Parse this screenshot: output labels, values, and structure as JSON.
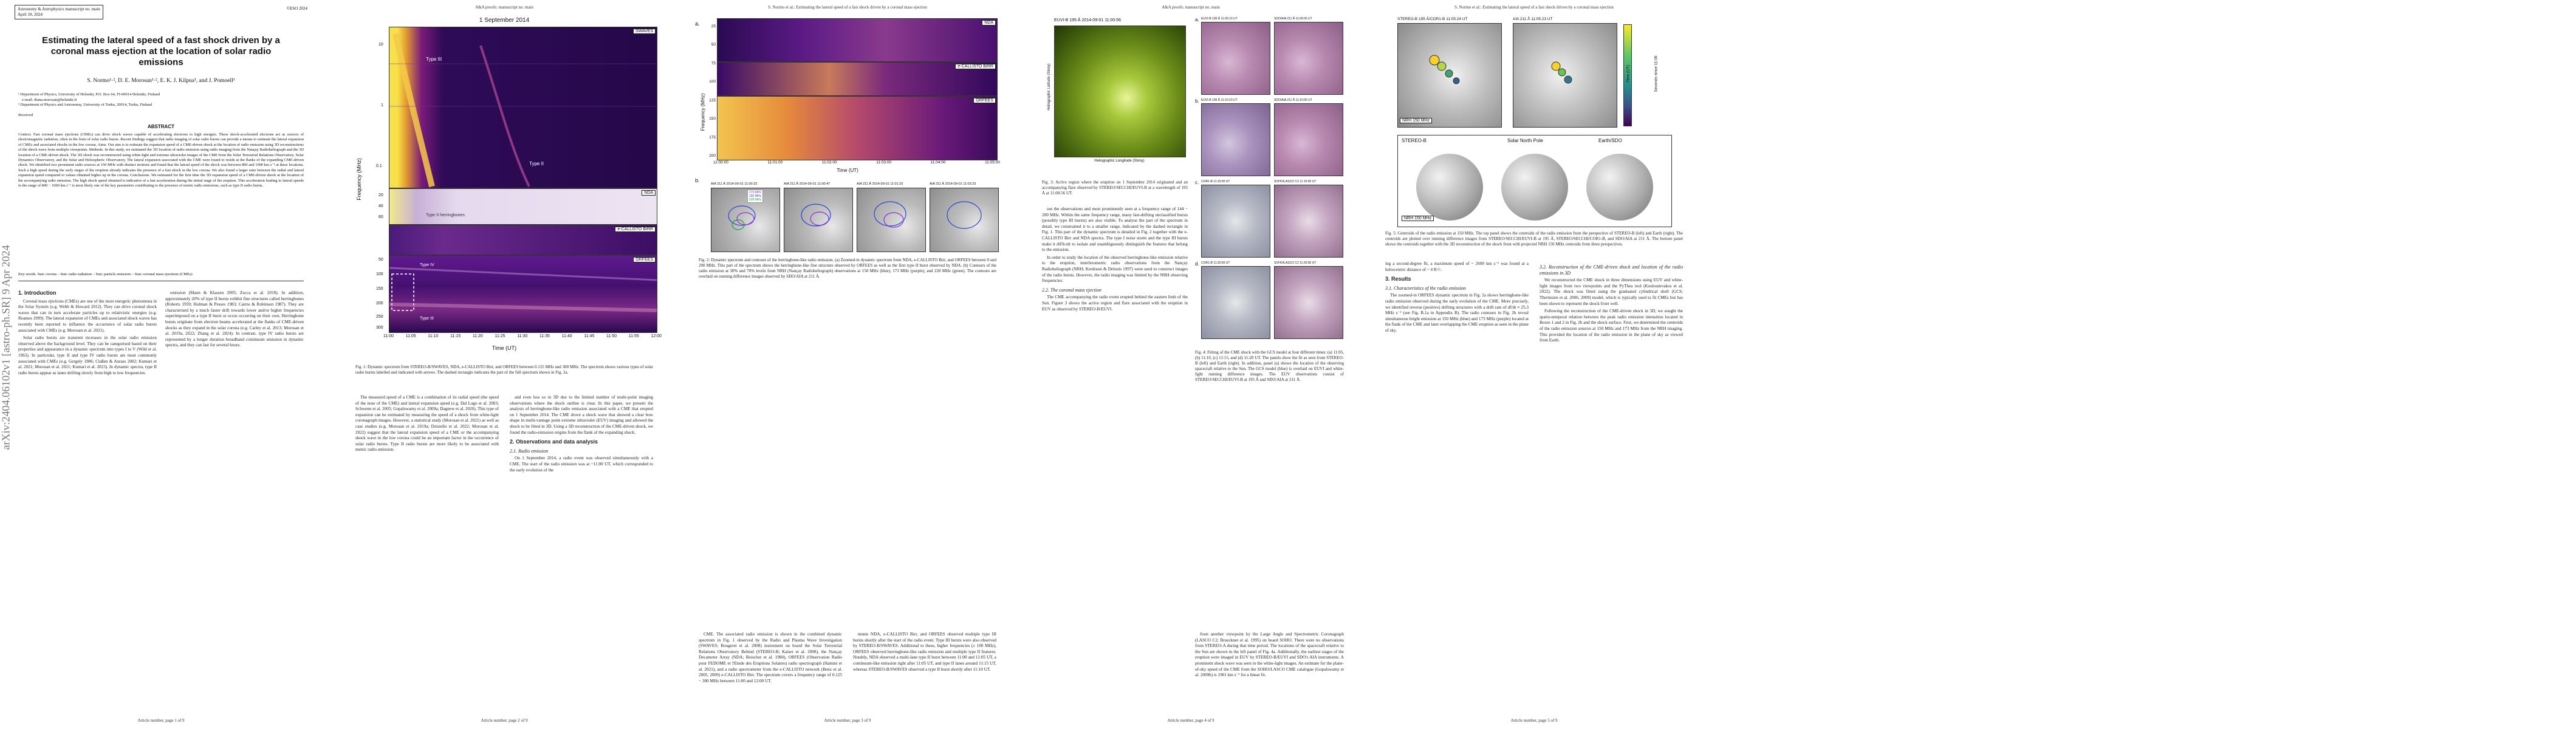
{
  "page1": {
    "journal": "Astronomy & Astrophysics manuscript no. main",
    "date": "April 10, 2024",
    "copyright": "©ESO 2024",
    "title": "Estimating the lateral speed of a fast shock driven by a coronal mass ejection at the location of solar radio emissions",
    "authors": "S. Normo¹·², D. E. Morosan¹·², E. K. J. Kilpua¹, and J. Pomoell¹",
    "affil1": "¹ Department of Physics, University of Helsinki, P.O. Box 64, FI-00014 Helsinki, Finland",
    "affil_email": "e-mail: diana.morosan@helsinki.fi",
    "affil2": "² Department of Physics and Astronomy, University of Turku, 20014, Turku, Finland",
    "received": "Received",
    "abstract_head": "ABSTRACT",
    "abstract": "Context. Fast coronal mass ejections (CMEs) can drive shock waves capable of accelerating electrons to high energies. These shock-accelerated electrons act as sources of electromagnetic radiation, often in the form of solar radio bursts. Recent findings suggest that radio imaging of solar radio bursts can provide a means to estimate the lateral expansion of CMEs and associated shocks in the low corona. Aims. Our aim is to estimate the expansion speed of a CME-driven shock at the location of radio emission using 3D reconstructions of the shock wave from multiple viewpoints. Methods. In this study, we estimated the 3D location of radio emission using radio imaging from the Nançay Radioheliograph and the 3D location of a CME-driven shock. The 3D shock was reconstructed using white-light and extreme ultraviolet images of the CME from the Solar Terrestrial Relations Observatory, Solar Dynamics Observatory, and the Solar and Heliospheric Observatory. The lateral expansion associated with the CME were found to reside at the flanks of the expanding CME-driven shock. We identified two prominent radio sources at 150 MHz with distinct motions and found that the lateral speed of the shock was between 800 and 1000 km s⁻¹ at these locations. Such a high speed during the early stages of the eruption already indicates the presence of a fast shock in the low corona. We also found a larger ratio between the radial and lateral expansion speed compared to values obtained higher up in the corona. Conclusions. We estimated for the first time the 3D expansion speed of a CME-driven shock at the location of the accompanying radio emission. The high shock speed obtained is indicative of a fast acceleration during the initial stage of the eruption. This acceleration leading to lateral speeds in the range of 800 − 1000 km s⁻¹ is most likely one of the key parameters contributing to the presence of metric radio emissions, such as type II radio bursts.",
    "keywords": "Key words. Sun: corona – Sun: radio radiation – Sun: particle emission – Sun: coronal mass ejections (CMEs)",
    "arxiv": "arXiv:2404.06102v1  [astro-ph.SR]  9 Apr 2024",
    "intro_head": "1. Introduction",
    "intro_a": "Coronal mass ejections (CMEs) are one of the most energetic phenomena in the Solar System (e.g. Webb & Howard 2012). They can drive coronal shock waves that can in turn accelerate particles up to relativistic energies (e.g. Reames 1999). The lateral expansion of CMEs and associated shock waves has recently been reported to influence the occurrence of solar radio bursts associated with CMEs (e.g. Morosan et al. 2021).",
    "intro_b": "Solar radio bursts are transient increases in the solar radio emission observed above the background level. They can be categorised based on their properties and appearance in a dynamic spectrum into types I to V (Wild et al. 1963). In particular, type II and type IV radio bursts are most commonly associated with CMEs (e.g. Gergely 1986; Claßen & Aurass 2002; Kumari et al. 2021; Morosan et al. 2021; Kumari et al. 2023). In dynamic spectra, type II radio bursts appear as lanes drifting slowly from high to low frequencies.",
    "intro_c": "emission (Mann & Klassen 2005; Zucca et al. 2018). In addition, approximately 20% of type II bursts exhibit fine structures called herringbones (Roberts 1959; Holman & Pesses 1983; Cairns & Robinson 1987). They are characterised by a much faster drift towards lower and/or higher frequencies superimposed on a type II burst or occur occurring on their own. Herringbone bursts originate from electron beams accelerated at the flanks of CME-driven shocks as they expand in the solar corona (e.g. Carley et al. 2013; Morosan et al. 2019a, 2022; Zhang et al. 2024). In contrast, type IV radio bursts are represented by a longer duration broadband continuum emission in dynamic spectra, and they can last for several hours.",
    "footer": "Article number, page 1 of 9"
  },
  "page2": {
    "header": "A&A proofs: manuscript no. main",
    "plot_title": "1 September 2014",
    "tags": [
      "SWAVES",
      "NDA",
      "e-CALLISTO BIRR",
      "ORFEES"
    ],
    "ylabel": "Frequency (MHz)",
    "xlabel": "Time (UT)",
    "xticks": [
      "11:00",
      "11:05",
      "11:10",
      "11:15",
      "11:20",
      "11:25",
      "11:30",
      "11:35",
      "11:40",
      "11:45",
      "11:50",
      "11:55",
      "12:00"
    ],
    "yticks_top": [
      "0.1",
      "1",
      "10"
    ],
    "yticks_mid": [
      "20",
      "40",
      "60"
    ],
    "yticks_bot": [
      "50",
      "100",
      "150",
      "200",
      "250",
      "300"
    ],
    "ann": [
      "Type III",
      "Type III",
      "Type II herringbones",
      "Type II",
      "Type IV"
    ],
    "caption": "Fig. 1: Dynamic spectrum from STEREO-B/SWAVES, NDA, e-CALLISTO Birr, and ORFEES between 0.125 MHz and 300 MHz. The spectrum shows various types of solar radio bursts labelled and indicated with arrows. The dashed rectangle indicates the part of the full spectrum shown in Fig. 2a.",
    "colA": "The measured speed of a CME is a combination of its radial speed (the speed of the nose of the CME) and lateral expansion speed (e.g. Dal Lago et al. 2003; Schwenn et al. 2005; Gopalswamy et al. 2009a; Dagnew et al. 2020). This type of expansion can be estimated by measuring the speed of a shock from white-light coronagraph images. However, a statistical study (Morosan et al. 2021) as well as case studies (e.g. Morosan et al. 2019a; Dzisiello et al. 2022; Morosan et al. 2022) suggest that the lateral expansion speed of a CME or the accompanying shock wave in the low corona could be an important factor in the occurrence of solar radio bursts. Type II radio bursts are more likely to be associated with metric radio emission.",
    "colB": "and even less so in 3D due to the limited number of multi-point imaging observations where the shock outline is clear. In this paper, we present the analysis of herringbone-like radio emission associated with a CME that erupted on 1 September 2014. The CME drove a shock wave that showed a clear bow shape in multi-vantage point extreme ultraviolet (EUV) imaging and allowed the shock to be fitted in 3D. Using a 3D reconstruction of the CME-driven shock, we found the radio-emission origins from the flank of the expanding shock.",
    "sec2": "2. Observations and data analysis",
    "sec21": "2.1. Radio emission",
    "colB2": "On 1 September 2014, a radio event was observed simultaneously with a CME. The start of the radio emission was at ~11:00 UT, which corresponded to the early evolution of the",
    "footer": "Article number, page 2 of 9"
  },
  "page3": {
    "header": "S. Normo et al.: Estimating the lateral speed of a fast shock driven by a coronal mass ejection",
    "tags": [
      "NDA",
      "e-CALLISTO BIRR",
      "ORFEES"
    ],
    "ylabel": "Frequency (MHz)",
    "xlabel": "Time (UT)",
    "xticks": [
      "11:00:00",
      "11:01:00",
      "11:02:00",
      "11:03:00",
      "11:04:00",
      "11:05:00"
    ],
    "yticks": [
      "25",
      "50",
      "75",
      "100",
      "125",
      "150",
      "175",
      "200"
    ],
    "panel_a": "a.",
    "panel_b": "b.",
    "small_titles": [
      "AIA 211 Å 2014-09-01 11:00:23",
      "AIA 211 Å 2014-09-01 11:00:47",
      "AIA 211 Å 2014-09-01 11:01:23",
      "AIA 211 Å 2014-09-01 11:03:23"
    ],
    "legend": [
      "173 MHz",
      "150 MHz",
      "228 MHz"
    ],
    "caption": "Fig. 2: Dynamic spectrum and contours of the herringbone-like radio emission. (a) Zoomed-in dynamic spectrum from NDA, e-CALLISTO Birr, and ORFEES between 0 and 200 MHz. This part of the spectrum shows the herringbone-like fine structure observed by ORFEES as well as the first type II burst observed by NDA. (b) Contours of the radio emission at 30% and 70% levels from NRH (Nançay Radioheliograph) observations at 150 MHz (blue), 173 MHz (purple), and 228 MHz (green). The contours are overlaid on running difference images observed by SDO/AIA at 211 Å.",
    "colA": "CME. The associated radio emission is shown in the combined dynamic spectrum in Fig. 1 observed by the Radio and Plasma Wave Investigation (SWAVES; Bougeret et al. 2008) instrument on board the Solar Terrestrial Relations Observatory Behind (STEREO-B; Kaiser et al. 2008), the Nançay Decameter Array (NDA; Boischot et al. 1980), ORFEES (Observation Radio pour FEDOME et l'Etude des Eruptions Solaires) radio spectrograph (Hamini et al. 2021), and a radio spectrometer from the e-CALLISTO network (Benz et al. 2005, 2009) e-CALLISTO Birr. The spectrum covers a frequency range of 0.125 − 300 MHz between 11:00 and 12:00 UT.",
    "colB": "ments NDA, e-CALLISTO Birr, and ORFEES observed multiple type III bursts shortly after the start of the radio event. Type III bursts were also observed by STEREO-B/SWAVES. Additional to these, higher frequencies (≥ 100 MHz), ORFEES observed herringbone-like radio emission and multiple type II features. Notably, NDA observed a multi-lane type II burst between 11:00 and 11:05 UT, a continuum-like emission right after 11:05 UT, and type II lanes around 11:15 UT, whereas STEREO-B/SWAVES observed a type II burst shortly after 11:10 UT.",
    "footer": "Article number, page 3 of 9"
  },
  "page4": {
    "header": "A&A proofs: manuscript no. main",
    "euvi_title": "EUVI-B 195 Å 2014-09-01 11:00:56",
    "euvi_xlabel": "Heliographic Longitude (Stony)",
    "euvi_ylabel": "Heliographic Latitude (Stony)",
    "caption3": "Fig. 3: Active region where the eruption on 1 September 2014 originated and an accompanying flare observed by STEREO/SECCHI/EUVI-B at a wavelength of 195 Å at 11:00:56 UT.",
    "caption4": "Fig. 4: Fitting of the CME shock with the GCS model at four different times: (a) 11:05, (b) 11:10, (c) 11:15, and (d) 11:20 UT. The panels show the fit as seen from STEREO-B (left) and Earth (right). In addition, panel (a) shows the location of the observing spacecraft relative to the Sun. The GCS model (blue) is overlaid on EUVI and white-light running difference images. The EUV observations consist of STEREO/SECCHI/EUVI-B at 195 Å and SDO/AIA at 211 Å.",
    "small_titles": [
      "EUVI-B 195 Å 11:05:10 UT",
      "SDO/AIA 211 Å 11:05:00 UT",
      "EUVI-B 195 Å 11:10:10 UT",
      "SDO/AIA 211 Å 11:10:00 UT",
      "COR1-B 11:15:00 UT",
      "SOHO/LASCO C2 11:15:00 UT",
      "COR1-B 11:20:00 UT",
      "SOHO/LASCO C2 11:20:00 UT"
    ],
    "panel_labels": [
      "a.",
      "b.",
      "c.",
      "d."
    ],
    "colA": "out the observations and most prominently seen at a frequency range of 144 − 200 MHz. Within the same frequency range, many fast-drifting unclassified bursts (possibly type III bursts) are also visible. To analyse the part of the spectrum in detail, we constrained it to a smaller range, indicated by the dashed rectangle in Fig. 1. This part of the dynamic spectrum is detailed in Fig. 2 together with the e-CALLISTO Birr and NDA spectra. The type I noise storm and the type III bursts make it difficult to isolate and unambiguously distinguish the features that belong to the emission.",
    "colA2": "In order to study the location of the observed herringbone-like emission relative to the eruption, interferometric radio observations from the Nançay Radioheliograph (NRH; Kerdraon & Delouis 1997) were used to construct images of the radio bursts. However, the radio imaging was limited by the NRH observing frequencies.",
    "sec22": "2.2. The coronal mass ejection",
    "colA3": "The CME accompanying the radio event erupted behind the eastern limb of the Sun. Figure 3 shows the active region and flare associated with the eruption in EUV as observed by STEREO-B/EUVI.",
    "colB": "from another viewpoint by the Large Angle and Spectrometric Coronagraph (LASCO C2; Brueckner et al. 1995) on board SOHO. There were no observations from STEREO-A during that time period. The locations of the spacecraft relative to the Sun are shown in the left panel of Fig. 4a. Additionally, the earliest stages of the eruption were imaged in EUV by STEREO-B/EUVI and SDO's AIA instruments. A prominent shock wave was seen in the white-light images. An estimate for the plane-of-sky speed of the CME from the SOHO/LASCO CME catalogue (Gopalswamy et al. 2009b) is 1901 km s⁻¹ for a linear fit.",
    "footer": "Article number, page 4 of 9"
  },
  "page5": {
    "header": "S. Normo et al.: Estimating the lateral speed of a fast shock driven by a coronal mass ejection",
    "top_titles": [
      "STEREO-B 195 Å/COR1-B 11:05:24 UT",
      "AIA 211 Å 11:05:23 UT"
    ],
    "cbar1": "Time (UT)",
    "cbar2": "Seconds since 11:00",
    "nrh_label": "NRH 150 MHz",
    "bottom_titles": [
      "STEREO-B",
      "Solar North Pole",
      "Earth/SDO"
    ],
    "caption": "Fig. 5: Centroids of the radio emission at 150 MHz. The top panel shows the centroids of the radio emission from the perspective of STEREO-B (left) and Earth (right). The centroids are plotted over running difference images from STEREO/SECCHI/EUVI-B at 195 Å, STEREO/SECCHI/COR1-B, and SDO/AIA at 211 Å. The bottom panel shows the centroids together with the 3D reconstruction of the shock front with projected NRH 150 MHz centroids from three perspectives.",
    "colA": "ing a second-degree fit, a maximum speed of ~ 2600 km s⁻¹ was found at a heliocentric distance of ~ 4 R☉.",
    "sec3": "3. Results",
    "sec31": "3.1. Characteristics of the radio emission",
    "colA2": "The zoomed-in ORFEES dynamic spectrum in Fig. 2a shows herringbone-like radio emission observed during the early evolution of the CME. More precisely, we identified reverse (positive) drifting structures with a drift rate of df/dt ≈ 25.3 MHz s⁻¹ (see Fig. B.1a in Appendix B). The radio contours in Fig. 2b reveal simultaneous bright emission at 150 MHz (blue) and 173 MHz (purple) located at the flank of the CME and later overlapping the CME eruption as seen in the plane of sky.",
    "sec32": "3.2. Reconstruction of the CME-driven shock and location of the radio emissions in 3D",
    "colB": "We reconstructed the CME shock in three dimensions using EUV and white-light images from two viewpoints and the PyThea tool (Kouloumvakos et al. 2022). The shock was fitted using the graduated cylindrical shell (GCS; Thernisien et al. 2006, 2009) model, which is typically used to fit CMEs but has been shown to represent the shock front well.",
    "colB2": "Following the reconstruction of the CME-driven shock in 3D, we sought the spatio-temporal relation between the peak radio emission intensities located in Boxes 1 and 2 in Fig. 2b and the shock surface. First, we determined the centroids of the radio emission sources at 150 MHz and 173 MHz from the NRH imaging. This provided the location of the radio emission in the plane of sky as viewed from Earth.",
    "footer": "Article number, page 5 of 9"
  },
  "colors": {
    "spectrum_bg": "#3a0a6b",
    "spectrum_hot": "#f2c84b",
    "contour_blue": "#2346d8",
    "contour_purple": "#8a2be2",
    "contour_green": "#1c9c3c"
  }
}
